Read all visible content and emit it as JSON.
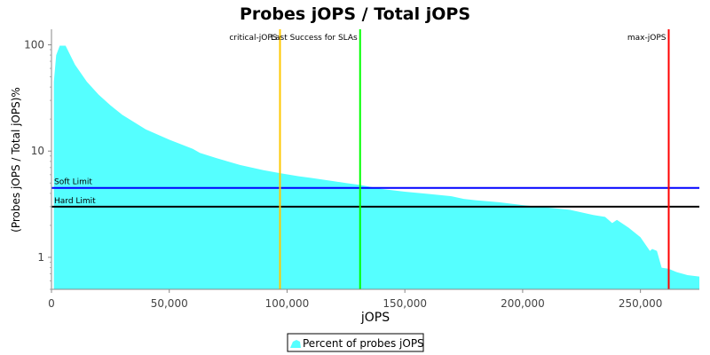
{
  "chart_data": {
    "type": "area",
    "title": "Probes jOPS / Total jOPS",
    "xlabel": "jOPS",
    "ylabel": "(Probes jOPS / Total jOPS)%",
    "y_scale": "log",
    "xlim": [
      0,
      275000
    ],
    "ylim": [
      0.5,
      140
    ],
    "x_ticks": [
      {
        "value": 0,
        "label": "0"
      },
      {
        "value": 50000,
        "label": "50,000"
      },
      {
        "value": 100000,
        "label": "100,000"
      },
      {
        "value": 150000,
        "label": "150,000"
      },
      {
        "value": 200000,
        "label": "200,000"
      },
      {
        "value": 250000,
        "label": "250,000"
      }
    ],
    "y_ticks": [
      {
        "value": 1,
        "label": "1"
      },
      {
        "value": 10,
        "label": "10"
      },
      {
        "value": 100,
        "label": "100"
      }
    ],
    "grid": false,
    "legend_position": "bottom-center",
    "series": [
      {
        "name": "Percent of probes jOPS",
        "color": "#55ffff",
        "x": [
          1000,
          2000,
          3500,
          6000,
          10000,
          15000,
          20000,
          25000,
          30000,
          40000,
          50000,
          60000,
          63000,
          70000,
          80000,
          90000,
          97000,
          105000,
          110000,
          120000,
          125000,
          131000,
          140000,
          150000,
          160000,
          170000,
          175000,
          180000,
          190000,
          200000,
          210000,
          220000,
          230000,
          235000,
          238000,
          240000,
          245000,
          250000,
          254000,
          255000,
          257000,
          259000,
          262000,
          265000,
          270000,
          275000
        ],
        "y": [
          45,
          80,
          98,
          98,
          65,
          45,
          34,
          27,
          22,
          16,
          12.8,
          10.5,
          9.6,
          8.6,
          7.4,
          6.6,
          6.2,
          5.8,
          5.6,
          5.2,
          5.0,
          4.8,
          4.4,
          4.15,
          3.95,
          3.75,
          3.55,
          3.45,
          3.3,
          3.1,
          2.95,
          2.8,
          2.5,
          2.4,
          2.1,
          2.25,
          1.9,
          1.55,
          1.15,
          1.2,
          1.15,
          0.8,
          0.78,
          0.73,
          0.68,
          0.66
        ]
      }
    ],
    "markers": [
      {
        "label": "critical-jOPS",
        "x": 97000,
        "color": "#ffc800",
        "orientation": "vertical"
      },
      {
        "label": "Last Success for SLAs",
        "x": 131000,
        "color": "#00ff00",
        "orientation": "vertical"
      },
      {
        "label": "max-jOPS",
        "x": 262000,
        "color": "#ff0000",
        "orientation": "vertical"
      }
    ],
    "limits": [
      {
        "label": "Soft Limit",
        "y": 4.5,
        "color": "#0000ff"
      },
      {
        "label": "Hard Limit",
        "y": 3.0,
        "color": "#000000"
      }
    ]
  }
}
